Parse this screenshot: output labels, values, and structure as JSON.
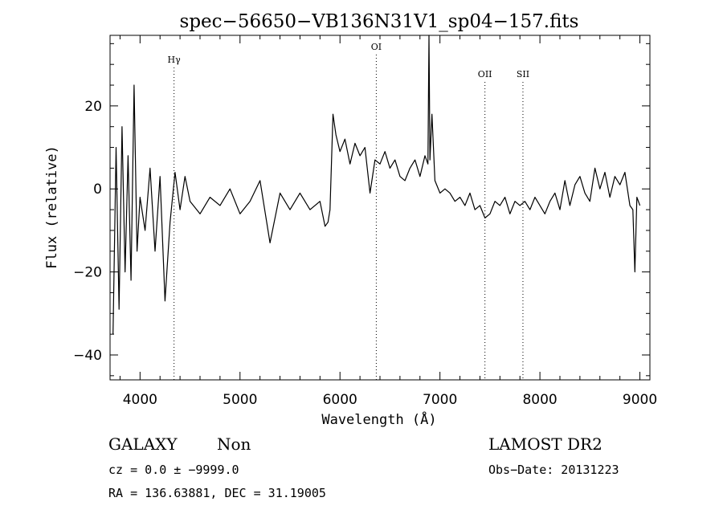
{
  "chart_data": {
    "type": "line",
    "title": "spec−56650−VB136N31V1_sp04−157.fits",
    "xlabel": "Wavelength (Å)",
    "ylabel": "Flux (relative)",
    "xlim": [
      3700,
      9100
    ],
    "ylim": [
      -46,
      37
    ],
    "x_ticks": [
      4000,
      5000,
      6000,
      7000,
      8000,
      9000
    ],
    "y_ticks": [
      -40,
      -20,
      0,
      20
    ],
    "y_tick_labels": [
      "−40",
      "−20",
      "0",
      "20"
    ],
    "lines": [
      {
        "label": "Hγ",
        "wavelength": 4340
      },
      {
        "label": "OI",
        "wavelength": 6363
      },
      {
        "label": "OII",
        "wavelength": 7450
      },
      {
        "label": "SII",
        "wavelength": 7830
      }
    ],
    "series": [
      {
        "x": [
          3730,
          3760,
          3790,
          3820,
          3850,
          3880,
          3910,
          3940,
          3970,
          4000,
          4050,
          4100,
          4150,
          4200,
          4250,
          4300,
          4350,
          4400,
          4450,
          4500,
          4600,
          4700,
          4800,
          4900,
          5000,
          5100,
          5200,
          5300,
          5400,
          5500,
          5600,
          5700,
          5800,
          5850,
          5880,
          5900,
          5930,
          5960,
          6000,
          6050,
          6100,
          6150,
          6200,
          6250,
          6300,
          6350,
          6400,
          6450,
          6500,
          6550,
          6600,
          6650,
          6700,
          6750,
          6800,
          6850,
          6880,
          6890,
          6900,
          6920,
          6950,
          7000,
          7050,
          7100,
          7150,
          7200,
          7250,
          7300,
          7350,
          7400,
          7450,
          7500,
          7550,
          7600,
          7650,
          7700,
          7750,
          7800,
          7850,
          7900,
          7950,
          8000,
          8050,
          8100,
          8150,
          8200,
          8250,
          8300,
          8350,
          8400,
          8450,
          8500,
          8550,
          8600,
          8650,
          8700,
          8750,
          8800,
          8850,
          8900,
          8930,
          8950,
          8970,
          9000
        ],
        "y": [
          -35,
          10,
          -29,
          15,
          -20,
          8,
          -22,
          25,
          -15,
          -2,
          -10,
          5,
          -15,
          3,
          -27,
          -8,
          4,
          -5,
          3,
          -3,
          -6,
          -2,
          -4,
          0,
          -6,
          -3,
          2,
          -13,
          -1,
          -5,
          -1,
          -5,
          -3,
          -9,
          -8,
          -5,
          18,
          13,
          9,
          12,
          6,
          11,
          8,
          10,
          -1,
          7,
          6,
          9,
          5,
          7,
          3,
          2,
          5,
          7,
          3,
          8,
          6,
          38,
          7,
          18,
          2,
          -1,
          0,
          -1,
          -3,
          -2,
          -4,
          -1,
          -5,
          -4,
          -7,
          -6,
          -3,
          -4,
          -2,
          -6,
          -3,
          -4,
          -3,
          -5,
          -2,
          -4,
          -6,
          -3,
          -1,
          -5,
          2,
          -4,
          1,
          3,
          -1,
          -3,
          5,
          0,
          4,
          -2,
          3,
          1,
          4,
          -4,
          -5,
          -20,
          -2,
          -4
        ]
      }
    ]
  },
  "footer": {
    "object_class": "GALAXY",
    "subclass": "Non",
    "cz": "cz = 0.0 ± −9999.0",
    "coords": "RA = 136.63881, DEC =  31.19005",
    "survey": "LAMOST DR2",
    "obs_date": "Obs−Date: 20131223"
  }
}
